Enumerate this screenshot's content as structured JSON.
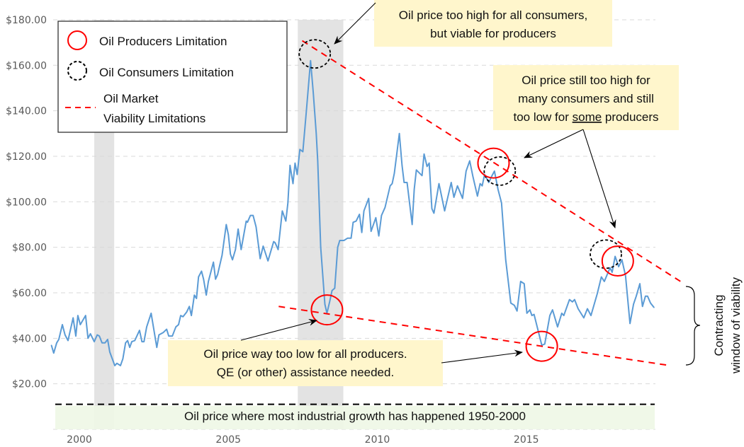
{
  "chart_data": {
    "type": "line",
    "title": "",
    "xlabel": "",
    "ylabel": "",
    "xlim": [
      1999.05,
      2019.35
    ],
    "ylim": [
      0,
      180
    ],
    "grid": "horizontal dashed",
    "x_ticks": [
      {
        "value": 2000,
        "label": "2000"
      },
      {
        "value": 2005,
        "label": "2005"
      },
      {
        "value": 2010,
        "label": "2010"
      },
      {
        "value": 2015,
        "label": "2015"
      }
    ],
    "y_ticks": [
      {
        "value": 20,
        "label": "$20.00"
      },
      {
        "value": 40,
        "label": "$40.00"
      },
      {
        "value": 60,
        "label": "$60.00"
      },
      {
        "value": 80,
        "label": "$80.00"
      },
      {
        "value": 100,
        "label": "$100.00"
      },
      {
        "value": 120,
        "label": "$120.00"
      },
      {
        "value": 140,
        "label": "$140.00"
      },
      {
        "value": 160,
        "label": "$160.00"
      },
      {
        "value": 180,
        "label": "$180.00"
      }
    ],
    "colors": {
      "series": "#5b9bd5",
      "limit_line": "#ff0000",
      "producer_circle": "#ff0000",
      "consumer_circle": "#000000",
      "recession_band": "#e3e3e3",
      "callout": "#fff6cc",
      "growth_band": "#eef7e6"
    },
    "shaded_periods": [
      [
        2000.5,
        2001.17
      ],
      [
        2007.33,
        2008.86
      ]
    ],
    "series": [
      {
        "points": [
          [
            1999.06,
            37
          ],
          [
            1999.14,
            33.5
          ],
          [
            1999.24,
            38
          ],
          [
            1999.31,
            39.5
          ],
          [
            1999.43,
            46
          ],
          [
            1999.52,
            41.5
          ],
          [
            1999.62,
            39
          ],
          [
            1999.79,
            49
          ],
          [
            1999.88,
            41
          ],
          [
            1999.95,
            50
          ],
          [
            2000.03,
            46
          ],
          [
            2000.21,
            50
          ],
          [
            2000.29,
            40
          ],
          [
            2000.37,
            42
          ],
          [
            2000.5,
            38.5
          ],
          [
            2000.6,
            41.5
          ],
          [
            2000.67,
            41
          ],
          [
            2000.76,
            38
          ],
          [
            2000.86,
            38
          ],
          [
            2000.95,
            39.5
          ],
          [
            2001.02,
            34
          ],
          [
            2001.19,
            28
          ],
          [
            2001.26,
            29
          ],
          [
            2001.38,
            28
          ],
          [
            2001.46,
            31
          ],
          [
            2001.55,
            38
          ],
          [
            2001.62,
            39
          ],
          [
            2001.69,
            36
          ],
          [
            2001.76,
            38.5
          ],
          [
            2001.86,
            39
          ],
          [
            2002.02,
            43.5
          ],
          [
            2002.1,
            38.5
          ],
          [
            2002.17,
            38.5
          ],
          [
            2002.26,
            45
          ],
          [
            2002.41,
            51
          ],
          [
            2002.6,
            36
          ],
          [
            2002.67,
            41.5
          ],
          [
            2002.81,
            42.5
          ],
          [
            2002.93,
            44
          ],
          [
            2003.0,
            41
          ],
          [
            2003.12,
            41
          ],
          [
            2003.24,
            45
          ],
          [
            2003.33,
            46
          ],
          [
            2003.4,
            50
          ],
          [
            2003.48,
            49.5
          ],
          [
            2003.6,
            51.5
          ],
          [
            2003.69,
            54
          ],
          [
            2003.76,
            50
          ],
          [
            2003.86,
            59
          ],
          [
            2003.93,
            57.5
          ],
          [
            2004.0,
            67
          ],
          [
            2004.1,
            69.5
          ],
          [
            2004.17,
            66
          ],
          [
            2004.26,
            59
          ],
          [
            2004.33,
            65
          ],
          [
            2004.5,
            73.5
          ],
          [
            2004.57,
            66
          ],
          [
            2004.64,
            68
          ],
          [
            2004.79,
            76.5
          ],
          [
            2004.93,
            90
          ],
          [
            2005.0,
            85.5
          ],
          [
            2005.07,
            77
          ],
          [
            2005.14,
            74.5
          ],
          [
            2005.24,
            79
          ],
          [
            2005.33,
            88
          ],
          [
            2005.43,
            79
          ],
          [
            2005.6,
            91.5
          ],
          [
            2005.64,
            91
          ],
          [
            2005.74,
            94
          ],
          [
            2005.83,
            94
          ],
          [
            2005.93,
            89
          ],
          [
            2006.07,
            75
          ],
          [
            2006.17,
            80.5
          ],
          [
            2006.33,
            74
          ],
          [
            2006.52,
            82.5
          ],
          [
            2006.57,
            82
          ],
          [
            2006.67,
            79
          ],
          [
            2006.81,
            96
          ],
          [
            2006.93,
            91.5
          ],
          [
            2007.0,
            99.5
          ],
          [
            2007.07,
            116
          ],
          [
            2007.17,
            108
          ],
          [
            2007.24,
            117
          ],
          [
            2007.31,
            112
          ],
          [
            2007.4,
            123
          ],
          [
            2007.5,
            122
          ],
          [
            2007.62,
            140
          ],
          [
            2007.76,
            162
          ],
          [
            2007.85,
            148
          ],
          [
            2007.95,
            130
          ],
          [
            2008.0,
            118
          ],
          [
            2008.1,
            80
          ],
          [
            2008.24,
            55
          ],
          [
            2008.31,
            51
          ],
          [
            2008.4,
            56
          ],
          [
            2008.48,
            61
          ],
          [
            2008.57,
            62
          ],
          [
            2008.67,
            80
          ],
          [
            2008.74,
            83
          ],
          [
            2008.88,
            83
          ],
          [
            2009.0,
            84
          ],
          [
            2009.12,
            84
          ],
          [
            2009.19,
            91
          ],
          [
            2009.29,
            91.5
          ],
          [
            2009.4,
            94.5
          ],
          [
            2009.48,
            86.5
          ],
          [
            2009.55,
            96
          ],
          [
            2009.71,
            101.5
          ],
          [
            2009.79,
            87
          ],
          [
            2009.95,
            93
          ],
          [
            2010.05,
            85
          ],
          [
            2010.14,
            94
          ],
          [
            2010.26,
            97.5
          ],
          [
            2010.43,
            107
          ],
          [
            2010.5,
            108
          ],
          [
            2010.57,
            112.5
          ],
          [
            2010.74,
            130
          ],
          [
            2010.83,
            116
          ],
          [
            2010.9,
            108.5
          ],
          [
            2011.0,
            108.5
          ],
          [
            2011.17,
            90
          ],
          [
            2011.24,
            105.5
          ],
          [
            2011.31,
            114
          ],
          [
            2011.5,
            111.5
          ],
          [
            2011.57,
            121
          ],
          [
            2011.67,
            115.5
          ],
          [
            2011.74,
            117
          ],
          [
            2011.83,
            97
          ],
          [
            2011.9,
            95
          ],
          [
            2012.07,
            108
          ],
          [
            2012.26,
            96
          ],
          [
            2012.48,
            108.5
          ],
          [
            2012.57,
            102
          ],
          [
            2012.69,
            107
          ],
          [
            2012.86,
            101.5
          ],
          [
            2012.98,
            113.5
          ],
          [
            2013.1,
            118
          ],
          [
            2013.21,
            111
          ],
          [
            2013.36,
            102.5
          ],
          [
            2013.45,
            108
          ],
          [
            2013.52,
            107
          ],
          [
            2013.6,
            112
          ],
          [
            2013.74,
            108.5
          ],
          [
            2013.83,
            111
          ],
          [
            2013.93,
            113.5
          ],
          [
            2014.05,
            105.5
          ],
          [
            2014.17,
            99.5
          ],
          [
            2014.31,
            74.5
          ],
          [
            2014.48,
            55.5
          ],
          [
            2014.6,
            54.5
          ],
          [
            2014.69,
            52
          ],
          [
            2014.81,
            65
          ],
          [
            2014.93,
            64
          ],
          [
            2015.02,
            51
          ],
          [
            2015.12,
            52.5
          ],
          [
            2015.19,
            50
          ],
          [
            2015.26,
            50.5
          ],
          [
            2015.52,
            37
          ],
          [
            2015.62,
            37.5
          ],
          [
            2015.79,
            50
          ],
          [
            2015.88,
            52.5
          ],
          [
            2016.05,
            45
          ],
          [
            2016.19,
            51
          ],
          [
            2016.26,
            50
          ],
          [
            2016.45,
            57
          ],
          [
            2016.55,
            56
          ],
          [
            2016.62,
            57
          ],
          [
            2016.74,
            53
          ],
          [
            2016.93,
            49
          ],
          [
            2017.05,
            53
          ],
          [
            2017.17,
            50
          ],
          [
            2017.38,
            59.5
          ],
          [
            2017.52,
            67
          ],
          [
            2017.62,
            65
          ],
          [
            2017.81,
            71
          ],
          [
            2017.88,
            69
          ],
          [
            2017.98,
            76
          ],
          [
            2018.1,
            71.5
          ],
          [
            2018.21,
            74.5
          ],
          [
            2018.33,
            67.5
          ],
          [
            2018.48,
            46.5
          ],
          [
            2018.6,
            55
          ],
          [
            2018.69,
            58.5
          ],
          [
            2018.81,
            64
          ],
          [
            2018.9,
            54
          ],
          [
            2019.0,
            58.5
          ],
          [
            2019.07,
            58.5
          ],
          [
            2019.17,
            55.5
          ],
          [
            2019.29,
            53.5
          ]
        ]
      }
    ],
    "limit_lines": {
      "upper": [
        [
          2007.48,
          170.8
        ],
        [
          2020.26,
          64.3
        ]
      ],
      "lower": [
        [
          2006.69,
          54
        ],
        [
          2019.83,
          28
        ]
      ]
    },
    "growth_level": 11,
    "producer_circles": [
      [
        2013.9,
        117
      ],
      [
        2018.07,
        74
      ],
      [
        2008.31,
        52.5
      ],
      [
        2015.52,
        36.5
      ]
    ],
    "consumer_circles": [
      [
        2007.9,
        165
      ],
      [
        2014.11,
        113.5
      ],
      [
        2017.67,
        77
      ]
    ],
    "legend": {
      "placement": "top-left",
      "producer": "Oil Producers Limitation",
      "consumer": "Oil Consumers Limitation",
      "market_line_1": "Oil Market",
      "market_line_2": "Viability Limitations"
    },
    "annotations": {
      "top_1": "Oil price too high for all consumers,",
      "top_2": "but viable for producers",
      "right_1": "Oil price still too high for",
      "right_2": "many consumers and still",
      "right_3a": "too low for ",
      "right_3b": "some",
      "right_3c": " producers",
      "bottom_1": "Oil price way too low for all producers.",
      "bottom_2": "QE  (or other) assistance needed.",
      "growth": "Oil price where most industrial growth has happened 1950-2000",
      "window_1": "Contracting",
      "window_2": "window of viability"
    }
  }
}
